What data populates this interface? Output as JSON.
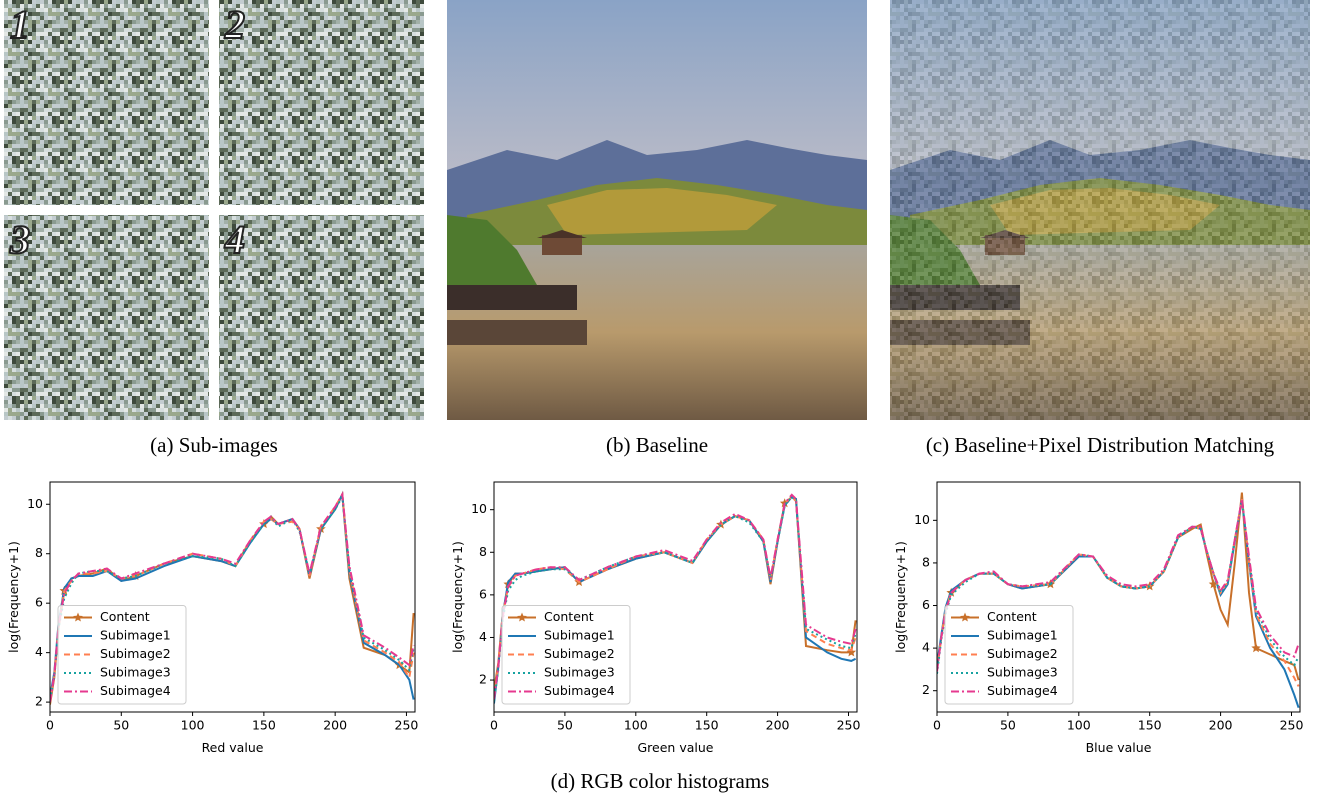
{
  "figure": {
    "panels": [
      {
        "caption": "(a) Sub-images",
        "labels": [
          "1",
          "2",
          "3",
          "4"
        ]
      },
      {
        "caption": "(b) Baseline"
      },
      {
        "caption": "(c) Baseline+Pixel Distribution Matching"
      }
    ],
    "caption": "(d) RGB color histograms"
  },
  "chart_data": [
    {
      "type": "line",
      "xlabel": "Red value",
      "ylabel": "log(Frequency+1)",
      "xlim": [
        0,
        256
      ],
      "ylim": [
        1.6,
        10.9
      ],
      "xticks": [
        0,
        50,
        100,
        150,
        200,
        250
      ],
      "yticks": [
        2,
        4,
        6,
        8,
        10
      ],
      "legend": "lower left",
      "x": [
        0,
        3,
        6,
        10,
        15,
        20,
        30,
        40,
        50,
        60,
        80,
        100,
        120,
        130,
        140,
        150,
        155,
        160,
        170,
        175,
        182,
        190,
        200,
        205,
        210,
        220,
        235,
        245,
        252,
        255
      ],
      "series": [
        {
          "name": "Content",
          "color": "#c8702a",
          "linestyle": "solid",
          "marker": "star",
          "values": [
            1.9,
            3,
            5,
            6.5,
            7.0,
            7.1,
            7.2,
            7.4,
            6.9,
            7.1,
            7.6,
            7.9,
            7.7,
            7.5,
            8.5,
            9.2,
            9.5,
            9.2,
            9.4,
            9.0,
            7.0,
            9.0,
            9.8,
            10.4,
            7.0,
            4.2,
            3.9,
            3.5,
            3.2,
            5.6
          ]
        },
        {
          "name": "Subimage1",
          "color": "#1f77b4",
          "linestyle": "solid",
          "values": [
            2.2,
            3.2,
            5.2,
            6.6,
            7.0,
            7.1,
            7.1,
            7.3,
            6.9,
            7.0,
            7.5,
            7.9,
            7.7,
            7.5,
            8.4,
            9.2,
            9.4,
            9.2,
            9.4,
            9.0,
            7.1,
            9.0,
            9.8,
            10.4,
            7.2,
            4.4,
            3.9,
            3.5,
            2.9,
            2.1
          ]
        },
        {
          "name": "Subimage2",
          "color": "#ff7f50",
          "linestyle": "dashed",
          "values": [
            2.0,
            3.1,
            5.1,
            6.5,
            6.9,
            7.2,
            7.2,
            7.3,
            7.0,
            7.1,
            7.6,
            8.0,
            7.8,
            7.5,
            8.5,
            9.3,
            9.4,
            9.2,
            9.3,
            9.0,
            7.1,
            9.1,
            9.9,
            10.4,
            7.3,
            4.5,
            4.0,
            3.6,
            3.0,
            4.0
          ]
        },
        {
          "name": "Subimage3",
          "color": "#17a2a0",
          "linestyle": "dotted",
          "values": [
            2.1,
            3.0,
            5.0,
            6.2,
            6.8,
            7.2,
            7.3,
            7.3,
            7.0,
            7.1,
            7.6,
            7.9,
            7.8,
            7.5,
            8.4,
            9.2,
            9.5,
            9.1,
            9.4,
            8.9,
            7.2,
            9.0,
            9.8,
            10.3,
            7.4,
            4.6,
            4.1,
            3.7,
            3.3,
            4.2
          ]
        },
        {
          "name": "Subimage4",
          "color": "#e6398f",
          "linestyle": "dashdot",
          "values": [
            2.0,
            3.1,
            5.1,
            6.4,
            6.9,
            7.2,
            7.3,
            7.4,
            7.0,
            7.2,
            7.6,
            8.0,
            7.8,
            7.6,
            8.5,
            9.3,
            9.5,
            9.2,
            9.4,
            9.0,
            7.2,
            9.1,
            9.9,
            10.4,
            7.5,
            4.7,
            4.2,
            3.8,
            3.5,
            4.3
          ]
        }
      ]
    },
    {
      "type": "line",
      "xlabel": "Green value",
      "ylabel": "log(Frequency+1)",
      "xlim": [
        0,
        256
      ],
      "ylim": [
        0.5,
        11.3
      ],
      "xticks": [
        0,
        50,
        100,
        150,
        200,
        250
      ],
      "yticks": [
        2,
        4,
        6,
        8,
        10
      ],
      "legend": "lower left",
      "x": [
        0,
        3,
        6,
        10,
        15,
        20,
        30,
        40,
        50,
        60,
        80,
        100,
        120,
        140,
        150,
        160,
        170,
        180,
        190,
        195,
        200,
        205,
        210,
        213,
        220,
        235,
        245,
        252,
        255
      ],
      "series": [
        {
          "name": "Content",
          "color": "#c8702a",
          "linestyle": "solid",
          "marker": "star",
          "values": [
            1.5,
            2.8,
            5.0,
            6.5,
            7.0,
            7.0,
            7.1,
            7.2,
            7.3,
            6.6,
            7.2,
            7.7,
            8.0,
            7.5,
            8.5,
            9.3,
            9.7,
            9.5,
            8.5,
            6.5,
            8.5,
            10.3,
            10.6,
            10.5,
            3.6,
            3.4,
            3.3,
            3.3,
            4.8
          ]
        },
        {
          "name": "Subimage1",
          "color": "#1f77b4",
          "linestyle": "solid",
          "values": [
            0.9,
            2.6,
            5.0,
            6.6,
            7.0,
            7.0,
            7.1,
            7.2,
            7.3,
            6.6,
            7.2,
            7.7,
            8.0,
            7.5,
            8.5,
            9.3,
            9.7,
            9.5,
            8.5,
            6.6,
            8.5,
            10.2,
            10.6,
            10.5,
            4.0,
            3.3,
            3.0,
            2.9,
            3.0
          ]
        },
        {
          "name": "Subimage2",
          "color": "#ff7f50",
          "linestyle": "dashed",
          "values": [
            1.2,
            2.7,
            5.0,
            6.4,
            6.9,
            7.0,
            7.2,
            7.3,
            7.2,
            6.6,
            7.2,
            7.8,
            8.0,
            7.5,
            8.6,
            9.3,
            9.7,
            9.5,
            8.6,
            6.7,
            8.6,
            10.3,
            10.6,
            10.4,
            4.3,
            3.7,
            3.5,
            3.4,
            4.0
          ]
        },
        {
          "name": "Subimage3",
          "color": "#17a2a0",
          "linestyle": "dotted",
          "values": [
            1.0,
            2.5,
            4.8,
            6.2,
            6.7,
            6.9,
            7.1,
            7.2,
            7.2,
            6.7,
            7.3,
            7.8,
            8.0,
            7.5,
            8.5,
            9.3,
            9.7,
            9.4,
            8.5,
            6.8,
            8.5,
            10.2,
            10.6,
            10.4,
            4.4,
            3.9,
            3.6,
            3.5,
            4.2
          ]
        },
        {
          "name": "Subimage4",
          "color": "#e6398f",
          "linestyle": "dashdot",
          "values": [
            1.1,
            2.6,
            4.9,
            6.4,
            6.9,
            7.0,
            7.2,
            7.3,
            7.3,
            6.7,
            7.3,
            7.8,
            8.1,
            7.6,
            8.6,
            9.4,
            9.8,
            9.5,
            8.6,
            6.8,
            8.6,
            10.3,
            10.7,
            10.5,
            4.6,
            4.0,
            3.8,
            3.7,
            4.4
          ]
        }
      ]
    },
    {
      "type": "line",
      "xlabel": "Blue value",
      "ylabel": "log(Frequency+1)",
      "xlim": [
        0,
        256
      ],
      "ylim": [
        1.0,
        11.8
      ],
      "xticks": [
        0,
        50,
        100,
        150,
        200,
        250
      ],
      "yticks": [
        2,
        4,
        6,
        8,
        10
      ],
      "legend": "lower left",
      "x": [
        0,
        3,
        6,
        10,
        20,
        30,
        40,
        50,
        60,
        80,
        100,
        110,
        120,
        130,
        140,
        150,
        160,
        170,
        180,
        186,
        190,
        195,
        200,
        205,
        210,
        215,
        220,
        225,
        235,
        245,
        252,
        255
      ],
      "series": [
        {
          "name": "Content",
          "color": "#c8702a",
          "linestyle": "solid",
          "marker": "star",
          "values": [
            3.0,
            4.5,
            5.8,
            6.6,
            7.2,
            7.5,
            7.5,
            7.0,
            6.8,
            7.0,
            8.3,
            8.3,
            7.3,
            6.9,
            6.8,
            6.9,
            7.6,
            9.2,
            9.6,
            9.8,
            8.5,
            7.0,
            5.8,
            5.1,
            8.0,
            11.3,
            6.6,
            4.0,
            3.7,
            3.4,
            3.2,
            2.5
          ]
        },
        {
          "name": "Subimage1",
          "color": "#1f77b4",
          "linestyle": "solid",
          "values": [
            3.2,
            4.6,
            5.9,
            6.7,
            7.2,
            7.5,
            7.5,
            7.0,
            6.8,
            7.0,
            8.3,
            8.3,
            7.3,
            6.9,
            6.8,
            6.9,
            7.6,
            9.2,
            9.7,
            9.6,
            8.6,
            7.5,
            6.5,
            7.0,
            9.0,
            11.0,
            8.0,
            5.5,
            4.0,
            3.0,
            1.8,
            1.2
          ]
        },
        {
          "name": "Subimage2",
          "color": "#ff7f50",
          "linestyle": "dashed",
          "values": [
            3.0,
            4.5,
            5.8,
            6.6,
            7.2,
            7.5,
            7.5,
            7.0,
            6.9,
            7.0,
            8.4,
            8.3,
            7.3,
            6.9,
            6.8,
            6.9,
            7.6,
            9.2,
            9.7,
            9.6,
            8.6,
            7.5,
            6.6,
            7.1,
            9.1,
            11.0,
            8.1,
            5.6,
            4.2,
            3.4,
            2.6,
            2.2
          ]
        },
        {
          "name": "Subimage3",
          "color": "#17a2a0",
          "linestyle": "dotted",
          "values": [
            2.8,
            4.4,
            5.6,
            6.5,
            7.1,
            7.5,
            7.5,
            7.0,
            6.9,
            7.0,
            8.4,
            8.3,
            7.3,
            6.9,
            6.8,
            6.9,
            7.6,
            9.2,
            9.7,
            9.6,
            8.6,
            7.5,
            6.6,
            7.1,
            9.1,
            10.9,
            8.2,
            5.8,
            4.4,
            3.6,
            3.2,
            3.6
          ]
        },
        {
          "name": "Subimage4",
          "color": "#e6398f",
          "linestyle": "dashdot",
          "values": [
            2.9,
            4.5,
            5.7,
            6.6,
            7.2,
            7.5,
            7.6,
            7.0,
            6.9,
            7.1,
            8.4,
            8.3,
            7.4,
            7.0,
            6.9,
            7.0,
            7.7,
            9.3,
            9.7,
            9.7,
            8.6,
            7.5,
            6.7,
            7.2,
            9.1,
            11.0,
            8.3,
            5.9,
            4.6,
            3.8,
            3.6,
            4.2
          ]
        }
      ]
    }
  ]
}
